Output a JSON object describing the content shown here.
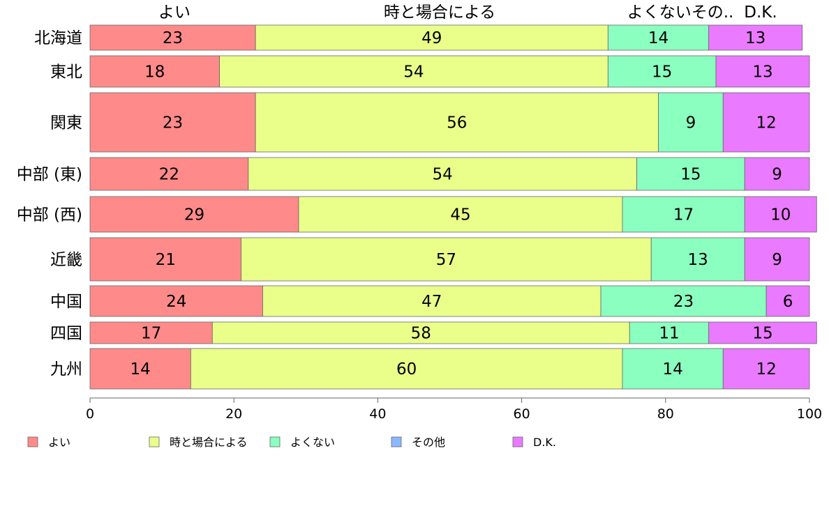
{
  "chart_data": {
    "type": "bar",
    "orientation": "horizontal",
    "stacked": true,
    "percent": true,
    "categories": [
      "北海道",
      "東北",
      "関東",
      "中部 (東)",
      "中部 (西)",
      "近畿",
      "中国",
      "四国",
      "九州"
    ],
    "series": [
      {
        "name": "よい",
        "color": "#ff8a8a",
        "values": [
          23,
          18,
          23,
          22,
          29,
          21,
          24,
          17,
          14
        ]
      },
      {
        "name": "時と場合による",
        "color": "#eaff8a",
        "values": [
          49,
          54,
          56,
          54,
          45,
          57,
          47,
          58,
          60
        ]
      },
      {
        "name": "よくない",
        "color": "#8affc0",
        "values": [
          14,
          15,
          9,
          15,
          17,
          13,
          23,
          11,
          14
        ]
      },
      {
        "name": "その他",
        "color": "#8ab8ff",
        "values": [
          0,
          0,
          0,
          0,
          0,
          0,
          0,
          0,
          0
        ]
      },
      {
        "name": "D.K.",
        "color": "#ea7aff",
        "values": [
          13,
          13,
          12,
          9,
          10,
          9,
          6,
          15,
          12
        ]
      }
    ],
    "top_labels": [
      "よい",
      "時と場合による",
      "よくないその..",
      "D.K."
    ],
    "xlim": [
      0,
      100
    ],
    "xticks": [
      0,
      20,
      40,
      60,
      80,
      100
    ],
    "legend_position": "bottom",
    "grid": false
  }
}
